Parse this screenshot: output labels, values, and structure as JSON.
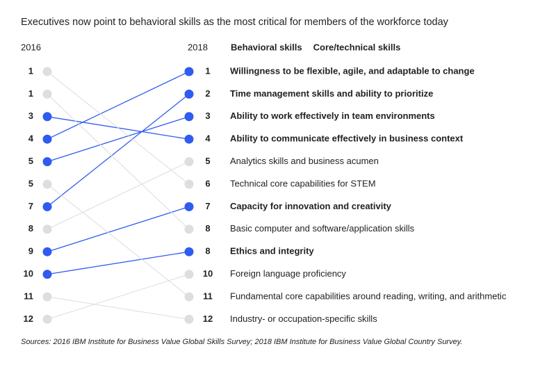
{
  "chart_data": {
    "type": "slope",
    "title": "Executives now point to behavioral skills as the most critical for members of the workforce today",
    "left_label": "2016",
    "right_label": "2018",
    "legend": [
      {
        "name": "Behavioral skills",
        "color": "#2f5bf0"
      },
      {
        "name": "Core/technical skills",
        "color": "#b8b8b8"
      }
    ],
    "skills": [
      {
        "label": "Willingness to be flexible, agile, and adaptable to change",
        "rank_2016": 4,
        "rank_2018": 1,
        "color": "#2f5bf0"
      },
      {
        "label": "Time management skills and ability to prioritize",
        "rank_2016": 7,
        "rank_2018": 2,
        "color": "#2f5bf0"
      },
      {
        "label": "Ability to work effectively in team environments",
        "rank_2016": 5,
        "rank_2018": 3,
        "color": "#2f5bf0"
      },
      {
        "label": "Ability to communicate effectively in business context",
        "rank_2016": 3,
        "rank_2018": 4,
        "color": "#2f5bf0"
      },
      {
        "label": "Analytics skills and business acumen",
        "rank_2016": 8,
        "rank_2018": 5,
        "color": "#b8b8b8"
      },
      {
        "label": "Technical core capabilities for STEM",
        "rank_2016": 1,
        "rank_2018": 6,
        "color": "#b8b8b8"
      },
      {
        "label": "Capacity for innovation and creativity",
        "rank_2016": 9,
        "rank_2018": 7,
        "color": "#2f5bf0"
      },
      {
        "label": "Basic computer and software/application skills",
        "rank_2016": 1,
        "rank_2018": 8,
        "color": "#b8b8b8"
      },
      {
        "label": "Ethics and integrity",
        "rank_2016": 10,
        "rank_2018": 8,
        "color": "#2f5bf0"
      },
      {
        "label": "Foreign language proficiency",
        "rank_2016": 12,
        "rank_2018": 10,
        "color": "#b8b8b8"
      },
      {
        "label": "Fundamental core capabilities around reading, writing, and arithmetic",
        "rank_2016": 5,
        "rank_2018": 11,
        "color": "#b8b8b8"
      },
      {
        "label": "Industry- or occupation-specific skills",
        "rank_2016": 11,
        "rank_2018": 12,
        "color": "#b8b8b8"
      }
    ],
    "source": "Sources: 2016 IBM Institute for Business Value Global Skills Survey; 2018 IBM Institute for Business Value Global Country Survey."
  }
}
